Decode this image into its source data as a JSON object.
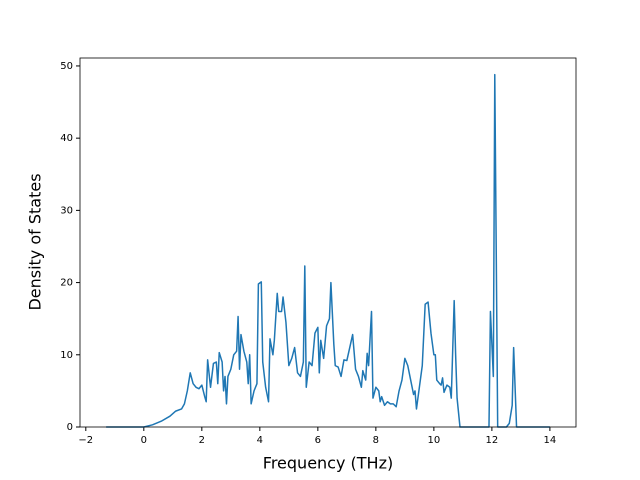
{
  "chart_data": {
    "type": "line",
    "x_label": "Frequency (THz)",
    "y_label": "Density of States",
    "xlim": [
      -2.2,
      14.9
    ],
    "ylim": [
      0,
      51.1
    ],
    "xticks": [
      {
        "value": -2,
        "label": "−2"
      },
      0,
      2,
      4,
      6,
      8,
      10,
      12,
      14
    ],
    "yticks": [
      0,
      10,
      20,
      30,
      40,
      50
    ],
    "color": "#1f77b4",
    "x": [
      -1.3,
      0,
      0.3,
      0.6,
      0.9,
      1.1,
      1.3,
      1.4,
      1.5,
      1.6,
      1.7,
      1.8,
      1.9,
      2.0,
      2.1,
      2.15,
      2.2,
      2.3,
      2.4,
      2.5,
      2.55,
      2.6,
      2.7,
      2.75,
      2.8,
      2.85,
      2.9,
      3.0,
      3.1,
      3.2,
      3.25,
      3.3,
      3.35,
      3.45,
      3.55,
      3.6,
      3.65,
      3.7,
      3.8,
      3.9,
      3.95,
      4.05,
      4.1,
      4.2,
      4.3,
      4.35,
      4.45,
      4.5,
      4.6,
      4.65,
      4.75,
      4.8,
      4.9,
      5.0,
      5.1,
      5.2,
      5.3,
      5.4,
      5.5,
      5.55,
      5.6,
      5.7,
      5.8,
      5.9,
      6.0,
      6.05,
      6.1,
      6.2,
      6.3,
      6.4,
      6.45,
      6.55,
      6.6,
      6.7,
      6.8,
      6.9,
      7.0,
      7.1,
      7.2,
      7.3,
      7.4,
      7.5,
      7.55,
      7.65,
      7.7,
      7.75,
      7.85,
      7.9,
      8.0,
      8.1,
      8.15,
      8.2,
      8.3,
      8.4,
      8.5,
      8.6,
      8.7,
      8.8,
      8.9,
      9.0,
      9.1,
      9.2,
      9.3,
      9.35,
      9.4,
      9.5,
      9.6,
      9.7,
      9.8,
      9.9,
      10.0,
      10.05,
      10.1,
      10.2,
      10.25,
      10.3,
      10.35,
      10.45,
      10.55,
      10.6,
      10.7,
      10.75,
      10.8,
      10.9,
      11.9,
      11.95,
      12.05,
      12.1,
      12.2,
      12.5,
      12.6,
      12.7,
      12.75,
      12.85,
      14.0
    ],
    "y": [
      0,
      0,
      0.3,
      0.8,
      1.5,
      2.2,
      2.5,
      3.2,
      5,
      7.5,
      6,
      5.5,
      5.3,
      5.8,
      4.2,
      3.5,
      9.3,
      5.5,
      8.8,
      9,
      6,
      10.3,
      9,
      5,
      7,
      3.2,
      7,
      8,
      10,
      10.5,
      15.3,
      8,
      12.8,
      10.5,
      9,
      6,
      10,
      3.2,
      5,
      6,
      19.8,
      20.1,
      9,
      5.5,
      3.5,
      12.2,
      10,
      12,
      18.5,
      16,
      16,
      18,
      14.5,
      8.5,
      9.5,
      11,
      7.5,
      7,
      9,
      22.3,
      5.5,
      9,
      8.5,
      13,
      13.8,
      7.5,
      12,
      9.5,
      14,
      15,
      20,
      11.5,
      8.5,
      8.3,
      7,
      9.3,
      9.2,
      11,
      12.8,
      8,
      7,
      5.5,
      7.8,
      6.5,
      10.2,
      8.5,
      16,
      4,
      5.5,
      5,
      3.5,
      4.2,
      3,
      3.5,
      3.2,
      3.2,
      2.8,
      5,
      6.5,
      9.5,
      8.5,
      6.5,
      4.5,
      5,
      2.5,
      5.5,
      8.5,
      17,
      17.3,
      13,
      10,
      10,
      6.5,
      6,
      5.8,
      6.8,
      4.8,
      5.8,
      5.5,
      4,
      17.5,
      10,
      4,
      0,
      0,
      16,
      7,
      48.8,
      0,
      0,
      0.5,
      3,
      11,
      0,
      0
    ]
  }
}
